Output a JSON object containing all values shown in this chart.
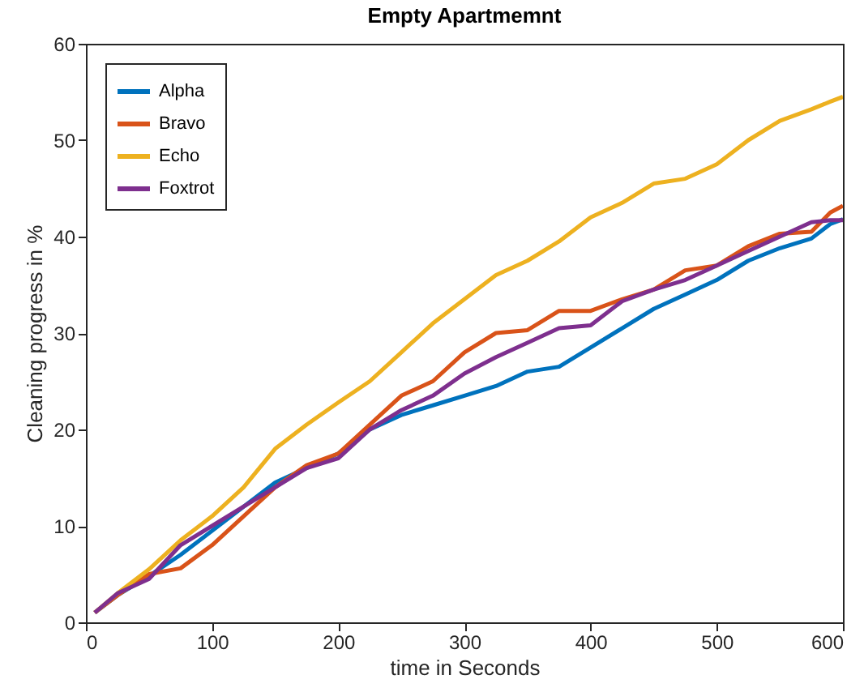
{
  "chart_data": {
    "type": "line",
    "title": "Empty Apartmemnt",
    "xlabel": "time in Seconds",
    "ylabel": "Cleaning progress in %",
    "x": [
      7,
      25,
      50,
      75,
      100,
      125,
      150,
      175,
      200,
      225,
      250,
      275,
      300,
      325,
      350,
      375,
      400,
      425,
      450,
      475,
      500,
      525,
      550,
      575,
      590,
      600
    ],
    "series": [
      {
        "name": "Alpha",
        "color": "#0072bd",
        "values": [
          1,
          2.8,
          4.8,
          7,
          9.5,
          12,
          14.5,
          16,
          17.5,
          20,
          21.5,
          22.5,
          23.5,
          24.5,
          26,
          26.5,
          28.5,
          30.5,
          32.5,
          34,
          35.5,
          37.5,
          38.8,
          39.8,
          41.3,
          41.8
        ]
      },
      {
        "name": "Bravo",
        "color": "#d95319",
        "values": [
          1,
          2.8,
          5,
          5.6,
          8,
          11,
          14,
          16.3,
          17.5,
          20.5,
          23.5,
          25,
          28,
          30,
          30.3,
          32.3,
          32.3,
          33.5,
          34.5,
          36.5,
          37,
          39,
          40.3,
          40.5,
          42.5,
          43.2
        ]
      },
      {
        "name": "Echo",
        "color": "#edb120",
        "values": [
          1,
          3,
          5.5,
          8.5,
          11,
          14,
          18,
          20.5,
          22.8,
          25,
          28,
          31,
          33.5,
          36,
          37.5,
          39.5,
          42,
          43.5,
          45.5,
          46,
          47.5,
          50,
          52,
          53.2,
          54,
          54.5
        ]
      },
      {
        "name": "Foxtrot",
        "color": "#7e2f8e",
        "values": [
          1,
          3,
          4.5,
          8,
          10,
          12,
          14,
          16,
          17,
          20,
          22,
          23.5,
          25.8,
          27.5,
          29,
          30.5,
          30.8,
          33.3,
          34.5,
          35.5,
          37,
          38.5,
          40,
          41.5,
          41.7,
          41.7
        ]
      }
    ],
    "xlim": [
      0,
      600
    ],
    "xticks": [
      0,
      100,
      200,
      300,
      400,
      500,
      600
    ],
    "ylim": [
      0,
      60
    ],
    "yticks": [
      0,
      10,
      20,
      30,
      40,
      50,
      60
    ],
    "legend": "top left",
    "grid": false,
    "line_style": "solid"
  }
}
